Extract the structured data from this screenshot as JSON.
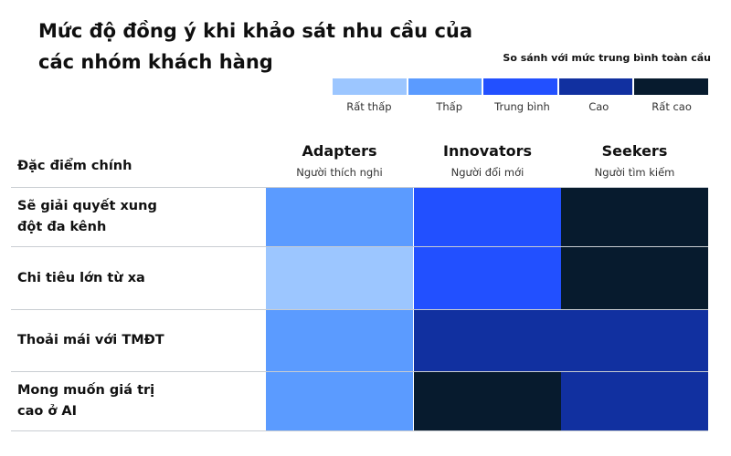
{
  "title": {
    "line1": "Mức độ đồng ý khi khảo sát nhu cầu của",
    "line2": "các nhóm khách hàng"
  },
  "legend": {
    "title": "So sánh với mức trung bình toàn cầu",
    "levels": [
      {
        "label": "Rất thấp",
        "color": "#9cc6ff"
      },
      {
        "label": "Thấp",
        "color": "#5b9bff"
      },
      {
        "label": "Trung bình",
        "color": "#2250ff"
      },
      {
        "label": "Cao",
        "color": "#1130a0"
      },
      {
        "label": "Rất cao",
        "color": "#071b2e"
      }
    ]
  },
  "chart_data": {
    "type": "heatmap",
    "row_header": "Đặc điểm chính",
    "columns": [
      {
        "name": "Adapters",
        "subtitle": "Người thích nghi"
      },
      {
        "name": "Innovators",
        "subtitle": "Người đổi mới"
      },
      {
        "name": "Seekers",
        "subtitle": "Người tìm kiếm"
      }
    ],
    "rows": [
      {
        "label": "Sẽ giải quyết xung đột đa kênh",
        "levels": [
          "Thấp",
          "Trung bình",
          "Rất cao"
        ]
      },
      {
        "label": "Chi tiêu lớn từ xa",
        "levels": [
          "Rất thấp",
          "Trung bình",
          "Rất cao"
        ]
      },
      {
        "label": "Thoải mái với TMĐT",
        "levels": [
          "Thấp",
          "Cao",
          "Cao"
        ]
      },
      {
        "label": "Mong muốn giá trị cao ở AI",
        "levels": [
          "Thấp",
          "Rất cao",
          "Cao"
        ]
      }
    ]
  }
}
